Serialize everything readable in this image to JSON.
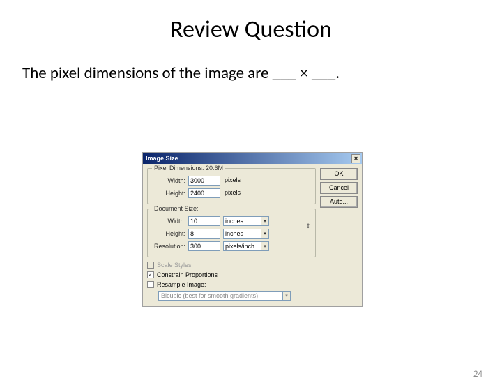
{
  "slide": {
    "title": "Review Question",
    "question": "The pixel dimensions of the image are ___ × ___.",
    "page_number": "24"
  },
  "dialog": {
    "title": "Image Size",
    "close_glyph": "×",
    "buttons": {
      "ok": "OK",
      "cancel": "Cancel",
      "auto": "Auto..."
    },
    "pixel_dims": {
      "group_label": "Pixel Dimensions: 20.6M",
      "width_label": "Width:",
      "width_value": "3000",
      "width_unit": "pixels",
      "height_label": "Height:",
      "height_value": "2400",
      "height_unit": "pixels"
    },
    "doc_size": {
      "group_label": "Document Size:",
      "width_label": "Width:",
      "width_value": "10",
      "width_unit": "inches",
      "height_label": "Height:",
      "height_value": "8",
      "height_unit": "inches",
      "res_label": "Resolution:",
      "res_value": "300",
      "res_unit": "pixels/inch",
      "link_glyph": "⇕"
    },
    "checks": {
      "scale_styles": "Scale Styles",
      "constrain": "Constrain Proportions",
      "resample": "Resample Image:",
      "scale_checked": false,
      "constrain_checked": true,
      "resample_checked": false
    },
    "resample_mode": "Bicubic (best for smooth gradients)",
    "arrow_glyph": "▾",
    "check_glyph": "✓"
  }
}
